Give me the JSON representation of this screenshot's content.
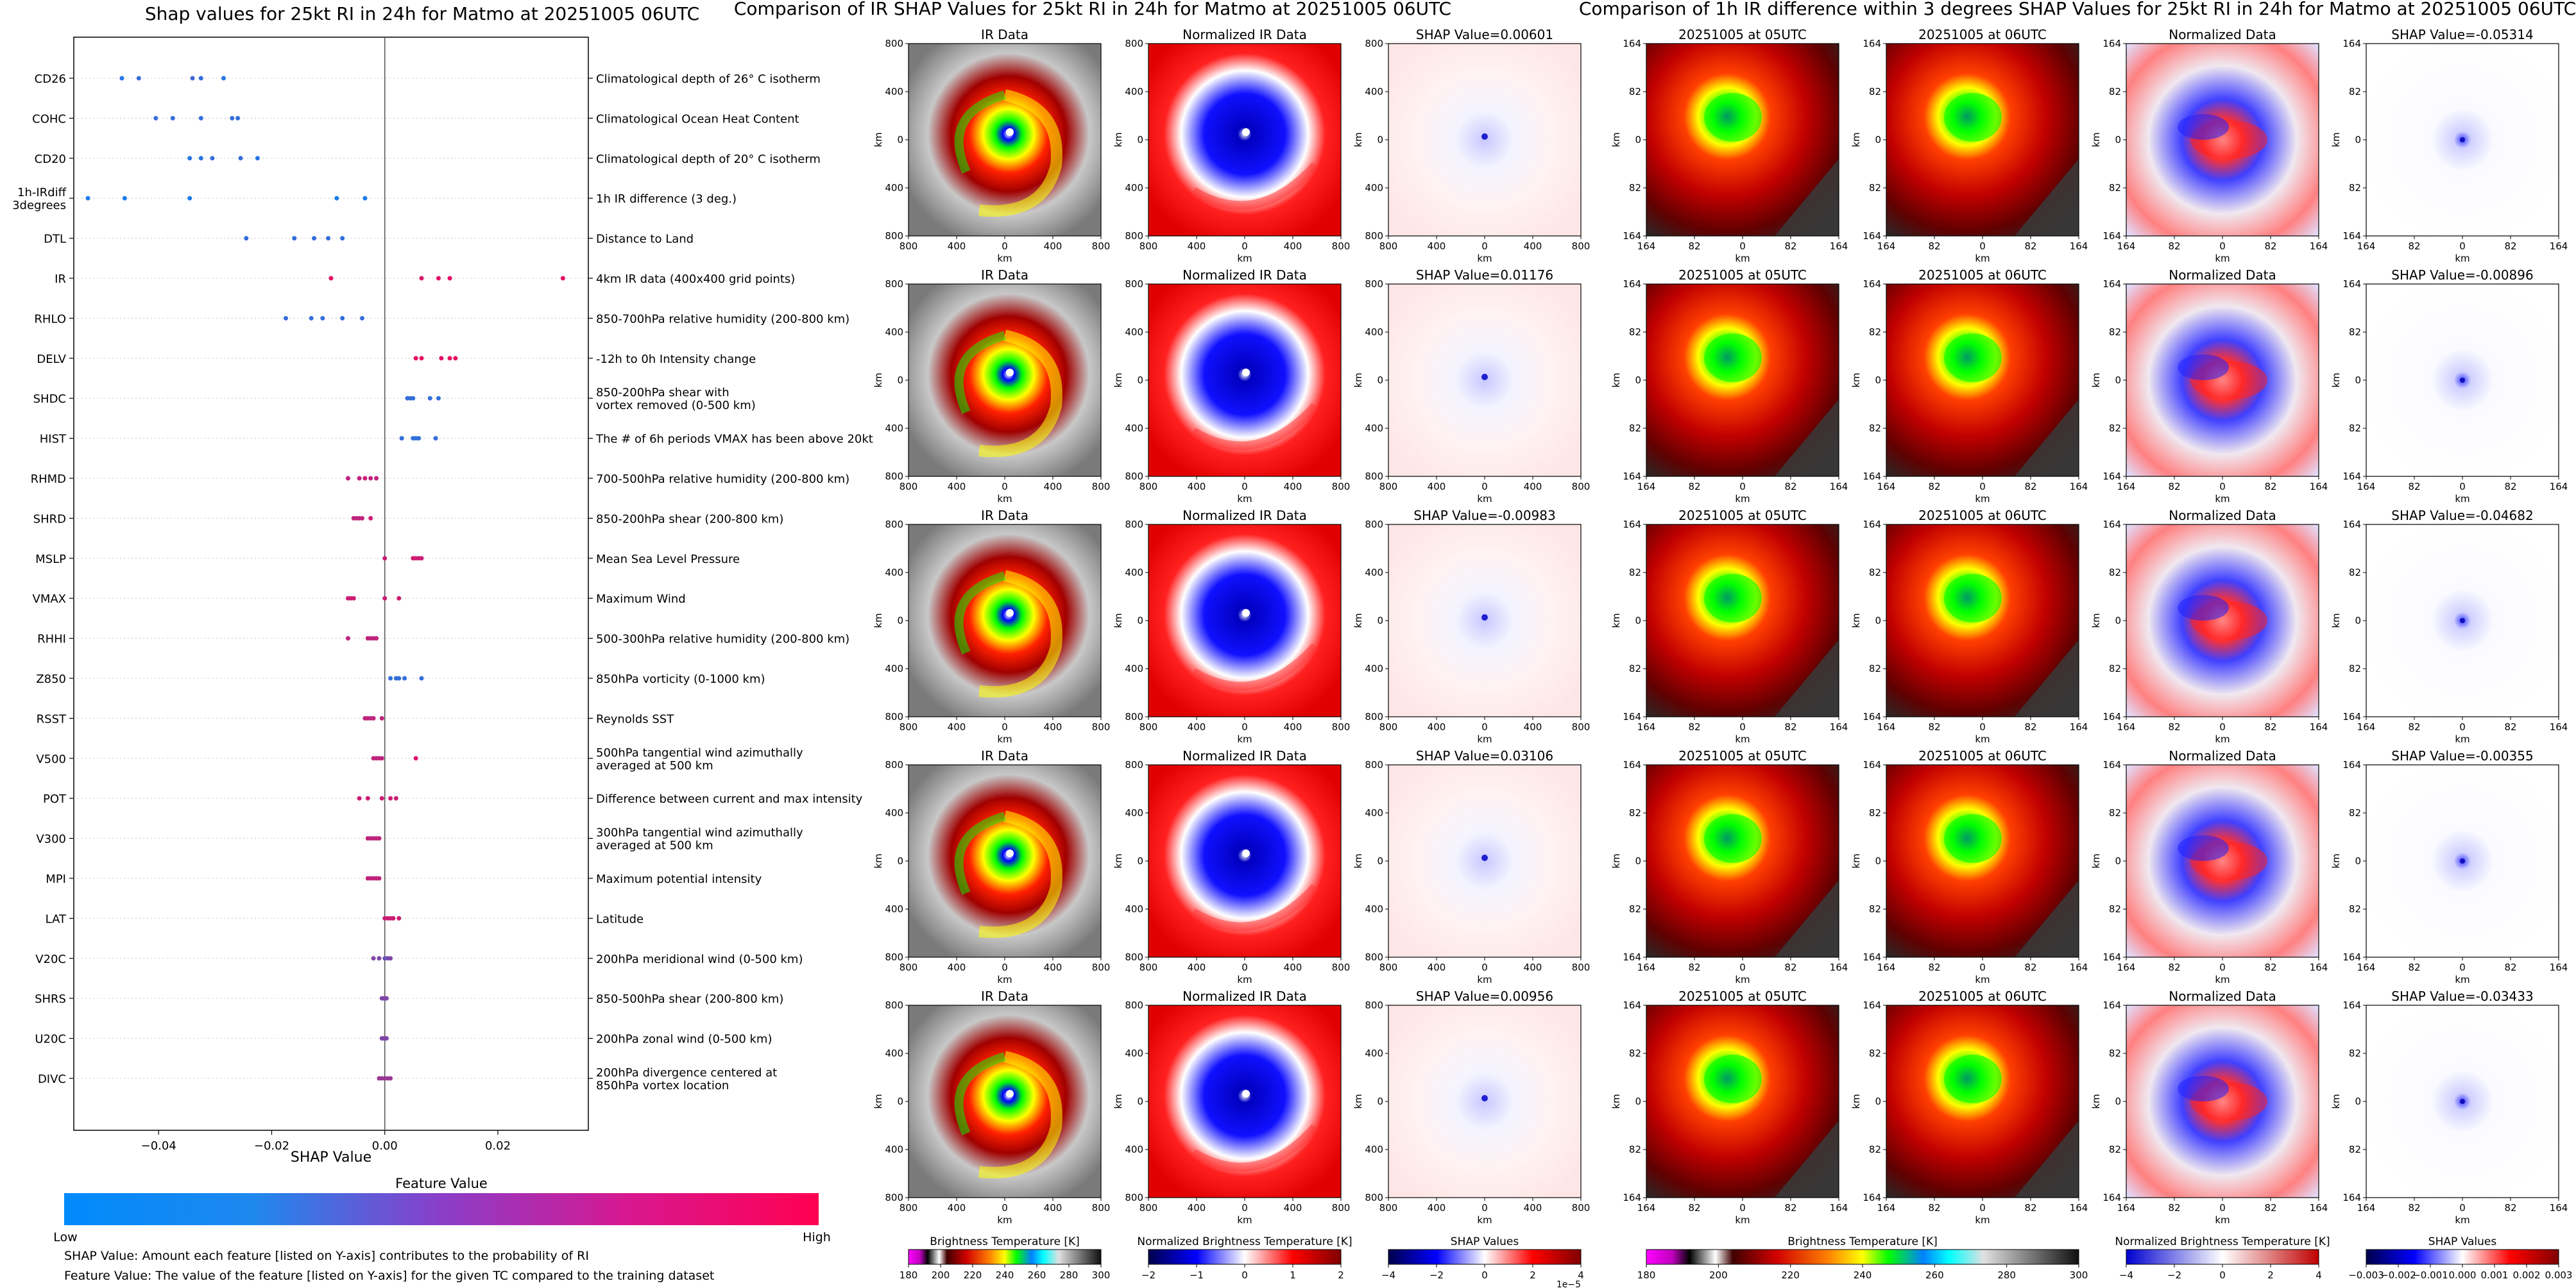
{
  "left_panel": {
    "title": "Shap values for 25kt RI in 24h for Matmo at 20251005 06UTC",
    "xlabel": "SHAP Value",
    "xticks": [
      -0.04,
      -0.02,
      0.0,
      0.02
    ],
    "xtick_labels": [
      "−0.04",
      "−0.02",
      "0.00",
      "0.02"
    ],
    "colorbar": {
      "title": "Feature Value",
      "low": "Low",
      "high": "High",
      "colors": [
        "#008afb",
        "#ff0051"
      ]
    },
    "note1": "SHAP Value: Amount each feature [listed on Y-axis] contributes to the probability of RI",
    "note2": "Feature Value: The value of the feature [listed on Y-axis] for the given TC compared to the training dataset"
  },
  "middle_panel": {
    "title": "Comparison of IR SHAP Values for 25kt RI in 24h for Matmo at 20251005 06UTC",
    "col_titles": [
      "IR Data",
      "Normalized IR Data"
    ],
    "shap_titles": [
      "SHAP Value=0.00601",
      "SHAP Value=0.01176",
      "SHAP Value=-0.00983",
      "SHAP Value=0.03106",
      "SHAP Value=0.00956"
    ],
    "axis_label": "km",
    "ticks": [
      "800",
      "400",
      "0",
      "400",
      "800"
    ],
    "cbar1": {
      "label": "Brightness Temperature [K]",
      "ticks": [
        "180",
        "200",
        "220",
        "240",
        "260",
        "280",
        "300"
      ]
    },
    "cbar2": {
      "label": "Normalized Brightness Temperature [K]",
      "ticks": [
        "−2",
        "−1",
        "0",
        "1",
        "2"
      ]
    },
    "cbar3": {
      "label": "SHAP Values",
      "ticks": [
        "−4",
        "−2",
        "0",
        "2",
        "4"
      ],
      "exponent": "1e−5"
    }
  },
  "right_panel": {
    "title": "Comparison of 1h IR difference within 3 degrees SHAP Values for 25kt RI in 24h for Matmo at 20251005 06UTC",
    "col_titles": [
      "20251005 at 05UTC",
      "20251005 at 06UTC",
      "Normalized Data"
    ],
    "shap_titles": [
      "SHAP Value=-0.05314",
      "SHAP Value=-0.00896",
      "SHAP Value=-0.04682",
      "SHAP Value=-0.00355",
      "SHAP Value=-0.03433"
    ],
    "axis_label": "km",
    "ticks": [
      "164",
      "82",
      "0",
      "82",
      "164"
    ],
    "cbar1": {
      "label": "Brightness Temperature [K]",
      "ticks": [
        "180",
        "200",
        "220",
        "240",
        "260",
        "280",
        "300"
      ]
    },
    "cbar2": {
      "label": "Normalized Brightness Temperature [K]",
      "ticks": [
        "−4",
        "−2",
        "0",
        "2",
        "4"
      ]
    },
    "cbar3": {
      "label": "SHAP Values",
      "ticks": [
        "−0.003",
        "−0.002",
        "−0.001",
        "0.000",
        "0.001",
        "0.002",
        "0.003"
      ]
    }
  },
  "chart_data": [
    {
      "type": "scatter",
      "title": "Shap values for 25kt RI in 24h for Matmo at 20251005 06UTC",
      "xlabel": "SHAP Value",
      "xlim": [
        -0.055,
        0.036
      ],
      "features": [
        {
          "code": "CD26",
          "desc": "Climatological depth of 26° C isotherm",
          "points": [
            [
              -0.0465,
              0.15
            ],
            [
              -0.0435,
              0.2
            ],
            [
              -0.034,
              0.25
            ],
            [
              -0.0325,
              0.2
            ],
            [
              -0.0285,
              0.15
            ]
          ]
        },
        {
          "code": "COHC",
          "desc": "Climatological Ocean Heat Content",
          "points": [
            [
              -0.0405,
              0.2
            ],
            [
              -0.0375,
              0.2
            ],
            [
              -0.0325,
              0.2
            ],
            [
              -0.027,
              0.2
            ],
            [
              -0.026,
              0.2
            ]
          ]
        },
        {
          "code": "CD20",
          "desc": "Climatological depth of 20° C isotherm",
          "points": [
            [
              -0.0345,
              0.15
            ],
            [
              -0.0325,
              0.15
            ],
            [
              -0.0305,
              0.2
            ],
            [
              -0.0255,
              0.2
            ],
            [
              -0.0225,
              0.15
            ]
          ]
        },
        {
          "code": "1h-IRdiff\n3degrees",
          "desc": "1h IR difference (3 deg.)",
          "points": [
            [
              -0.0525,
              0.1
            ],
            [
              -0.046,
              0.1
            ],
            [
              -0.0345,
              0.1
            ],
            [
              -0.0085,
              0.1
            ],
            [
              -0.0035,
              0.1
            ]
          ]
        },
        {
          "code": "DTL",
          "desc": "Distance to Land",
          "points": [
            [
              -0.0245,
              0.2
            ],
            [
              -0.016,
              0.2
            ],
            [
              -0.0125,
              0.2
            ],
            [
              -0.01,
              0.2
            ],
            [
              -0.0075,
              0.2
            ]
          ]
        },
        {
          "code": "IR",
          "desc": "4km IR data (400x400 grid points)",
          "points": [
            [
              -0.0095,
              0.9
            ],
            [
              0.0065,
              0.85
            ],
            [
              0.0095,
              0.9
            ],
            [
              0.0115,
              0.9
            ],
            [
              0.0315,
              0.9
            ]
          ]
        },
        {
          "code": "RHLO",
          "desc": "850-700hPa relative humidity (200-800 km)",
          "points": [
            [
              -0.0175,
              0.2
            ],
            [
              -0.013,
              0.2
            ],
            [
              -0.011,
              0.2
            ],
            [
              -0.0075,
              0.2
            ],
            [
              -0.004,
              0.2
            ]
          ]
        },
        {
          "code": "DELV",
          "desc": "-12h to 0h Intensity change",
          "points": [
            [
              0.0055,
              0.9
            ],
            [
              0.0065,
              0.9
            ],
            [
              0.01,
              0.9
            ],
            [
              0.0115,
              0.9
            ],
            [
              0.0125,
              0.9
            ]
          ]
        },
        {
          "code": "SHDC",
          "desc": "850-200hPa shear with\nvortex removed (0-500 km)",
          "points": [
            [
              0.004,
              0.2
            ],
            [
              0.0045,
              0.2
            ],
            [
              0.005,
              0.2
            ],
            [
              0.008,
              0.2
            ],
            [
              0.0095,
              0.2
            ]
          ]
        },
        {
          "code": "HIST",
          "desc": "The # of 6h periods VMAX has been above 20kt",
          "points": [
            [
              0.003,
              0.2
            ],
            [
              0.005,
              0.2
            ],
            [
              0.0055,
              0.2
            ],
            [
              0.006,
              0.2
            ],
            [
              0.009,
              0.2
            ]
          ]
        },
        {
          "code": "RHMD",
          "desc": "700-500hPa relative humidity (200-800 km)",
          "points": [
            [
              -0.0065,
              0.75
            ],
            [
              -0.0045,
              0.75
            ],
            [
              -0.0035,
              0.8
            ],
            [
              -0.0025,
              0.75
            ],
            [
              -0.0015,
              0.75
            ]
          ]
        },
        {
          "code": "SHRD",
          "desc": "850-200hPa shear (200-800 km)",
          "points": [
            [
              -0.0055,
              0.75
            ],
            [
              -0.005,
              0.75
            ],
            [
              -0.0045,
              0.75
            ],
            [
              -0.004,
              0.75
            ],
            [
              -0.0025,
              0.8
            ]
          ]
        },
        {
          "code": "MSLP",
          "desc": "Mean Sea Level Pressure",
          "points": [
            [
              0.0,
              0.8
            ],
            [
              0.005,
              0.8
            ],
            [
              0.0055,
              0.8
            ],
            [
              0.006,
              0.8
            ],
            [
              0.0065,
              0.8
            ]
          ]
        },
        {
          "code": "VMAX",
          "desc": "Maximum Wind",
          "points": [
            [
              -0.0065,
              0.8
            ],
            [
              -0.006,
              0.8
            ],
            [
              -0.0055,
              0.8
            ],
            [
              0.0,
              0.8
            ],
            [
              0.0025,
              0.8
            ]
          ]
        },
        {
          "code": "RHHI",
          "desc": "500-300hPa relative humidity (200-800 km)",
          "points": [
            [
              -0.0065,
              0.75
            ],
            [
              -0.003,
              0.75
            ],
            [
              -0.0025,
              0.75
            ],
            [
              -0.002,
              0.75
            ],
            [
              -0.0015,
              0.75
            ]
          ]
        },
        {
          "code": "Z850",
          "desc": "850hPa vorticity (0-1000 km)",
          "points": [
            [
              0.001,
              0.2
            ],
            [
              0.002,
              0.2
            ],
            [
              0.0025,
              0.2
            ],
            [
              0.0035,
              0.2
            ],
            [
              0.0065,
              0.2
            ]
          ]
        },
        {
          "code": "RSST",
          "desc": "Reynolds SST",
          "points": [
            [
              -0.0035,
              0.75
            ],
            [
              -0.003,
              0.75
            ],
            [
              -0.0025,
              0.75
            ],
            [
              -0.002,
              0.75
            ],
            [
              -0.0005,
              0.75
            ]
          ]
        },
        {
          "code": "V500",
          "desc": "500hPa tangential wind azimuthally\naveraged at 500 km",
          "points": [
            [
              -0.002,
              0.75
            ],
            [
              -0.0015,
              0.75
            ],
            [
              -0.001,
              0.75
            ],
            [
              -0.0005,
              0.75
            ],
            [
              0.0055,
              0.85
            ]
          ]
        },
        {
          "code": "POT",
          "desc": "Difference between current and max intensity",
          "points": [
            [
              -0.0045,
              0.8
            ],
            [
              -0.003,
              0.8
            ],
            [
              -0.0005,
              0.8
            ],
            [
              0.001,
              0.8
            ],
            [
              0.002,
              0.8
            ]
          ]
        },
        {
          "code": "V300",
          "desc": "300hPa tangential wind azimuthally\naveraged at 500 km",
          "points": [
            [
              -0.003,
              0.75
            ],
            [
              -0.0025,
              0.75
            ],
            [
              -0.002,
              0.75
            ],
            [
              -0.0015,
              0.75
            ],
            [
              -0.001,
              0.75
            ]
          ]
        },
        {
          "code": "MPI",
          "desc": "Maximum potential intensity",
          "points": [
            [
              -0.003,
              0.75
            ],
            [
              -0.0025,
              0.75
            ],
            [
              -0.002,
              0.75
            ],
            [
              -0.0015,
              0.75
            ],
            [
              -0.001,
              0.75
            ]
          ]
        },
        {
          "code": "LAT",
          "desc": "Latitude",
          "points": [
            [
              0.0,
              0.8
            ],
            [
              0.0005,
              0.8
            ],
            [
              0.001,
              0.8
            ],
            [
              0.0015,
              0.8
            ],
            [
              0.0025,
              0.8
            ]
          ]
        },
        {
          "code": "V20C",
          "desc": "200hPa meridional wind (0-500 km)",
          "points": [
            [
              -0.002,
              0.5
            ],
            [
              -0.001,
              0.5
            ],
            [
              0.0,
              0.4
            ],
            [
              0.0005,
              0.45
            ],
            [
              0.001,
              0.5
            ]
          ]
        },
        {
          "code": "SHRS",
          "desc": "850-500hPa shear (200-800 km)",
          "points": [
            [
              -0.0005,
              0.5
            ],
            [
              -0.0003,
              0.5
            ],
            [
              0.0,
              0.5
            ],
            [
              0.0002,
              0.5
            ],
            [
              0.0003,
              0.5
            ]
          ]
        },
        {
          "code": "U20C",
          "desc": "200hPa zonal wind (0-500 km)",
          "points": [
            [
              -0.0005,
              0.5
            ],
            [
              -0.0003,
              0.5
            ],
            [
              0.0,
              0.5
            ],
            [
              0.0002,
              0.5
            ],
            [
              0.0003,
              0.5
            ]
          ]
        },
        {
          "code": "DIVC",
          "desc": "200hPa divergence centered at\n850hPa vortex location",
          "points": [
            [
              -0.001,
              0.6
            ],
            [
              -0.0005,
              0.6
            ],
            [
              0.0,
              0.6
            ],
            [
              0.0005,
              0.6
            ],
            [
              0.001,
              0.6
            ]
          ]
        }
      ]
    },
    {
      "type": "heatmap",
      "title": "Comparison of IR SHAP Values for 25kt RI in 24h for Matmo at 20251005 06UTC",
      "rows": 5,
      "columns": [
        "IR Data",
        "Normalized IR Data",
        "SHAP"
      ],
      "shap_values": [
        0.00601,
        0.01176,
        -0.00983,
        0.03106,
        0.00956
      ],
      "axis_range_km": [
        -800,
        800
      ]
    },
    {
      "type": "heatmap",
      "title": "Comparison of 1h IR difference within 3 degrees SHAP Values for 25kt RI in 24h for Matmo at 20251005 06UTC",
      "rows": 5,
      "columns": [
        "20251005 at 05UTC",
        "20251005 at 06UTC",
        "Normalized Data",
        "SHAP"
      ],
      "shap_values": [
        -0.05314,
        -0.00896,
        -0.04682,
        -0.00355,
        -0.03433
      ],
      "axis_range_km": [
        -164,
        164
      ]
    }
  ]
}
